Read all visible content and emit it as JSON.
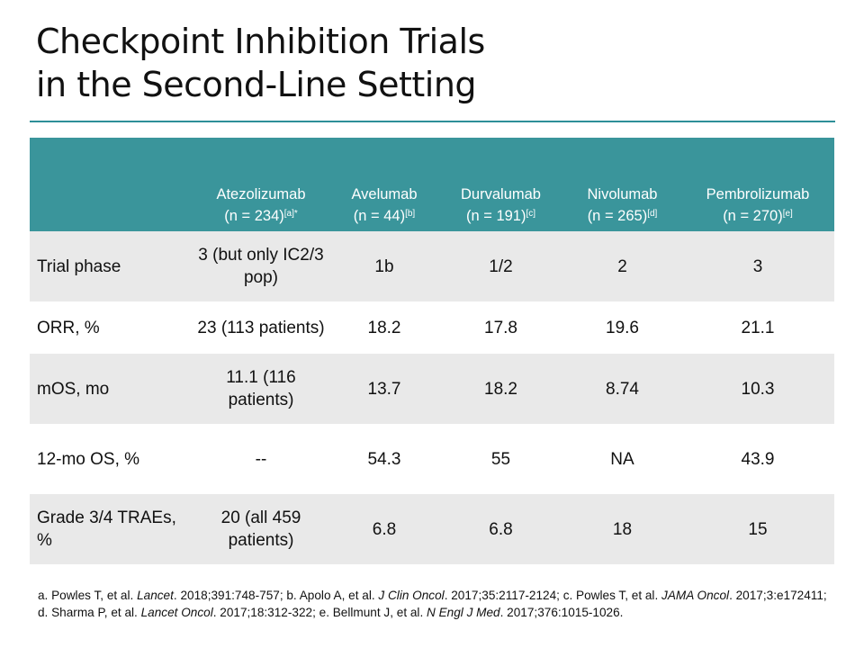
{
  "title": {
    "line1": "Checkpoint Inhibition Trials",
    "line2": "in the Second-Line Setting"
  },
  "table": {
    "headers": [
      {
        "drug": "Atezolizumab",
        "n": "(n = 234)",
        "sup": "[a]*"
      },
      {
        "drug": "Avelumab",
        "n": "(n = 44)",
        "sup": "[b]"
      },
      {
        "drug": "Durvalumab",
        "n": "(n = 191)",
        "sup": "[c]"
      },
      {
        "drug": "Nivolumab",
        "n": "(n = 265)",
        "sup": "[d]"
      },
      {
        "drug": "Pembrolizumab",
        "n": "(n = 270)",
        "sup": "[e]"
      }
    ],
    "rows": [
      {
        "label": "Trial phase",
        "cells": [
          "3 (but only IC2/3 pop)",
          "1b",
          "1/2",
          "2",
          "3"
        ]
      },
      {
        "label": "ORR, %",
        "cells": [
          "23 (113 patients)",
          "18.2",
          "17.8",
          "19.6",
          "21.1"
        ]
      },
      {
        "label": "mOS, mo",
        "cells": [
          "11.1 (116 patients)",
          "13.7",
          "18.2",
          "8.74",
          "10.3"
        ]
      },
      {
        "label": "12-mo OS, %",
        "cells": [
          "--",
          "54.3",
          "55",
          "NA",
          "43.9"
        ]
      },
      {
        "label": "Grade 3/4 TRAEs, %",
        "cells": [
          "20 (all 459 patients)",
          "6.8",
          "6.8",
          "18",
          "15"
        ]
      }
    ]
  },
  "references": {
    "a_pre": "a. Powles T, et al. ",
    "a_journal": "Lancet",
    "a_post": ". 2018;391:748-757; b. Apolo A, et al. ",
    "b_journal": "J Clin Oncol",
    "b_post": ". 2017;35:2117-2124; c. Powles T, et al. ",
    "c_journal": "JAMA Oncol",
    "c_post": ". 2017;3:e172411; d. Sharma P, et al. ",
    "d_journal": "Lancet Oncol",
    "d_post": ". 2017;18:312-322; e. Bellmunt J, et al. ",
    "e_journal": "N Engl J Med",
    "e_post": ". 2017;376:1015-1026."
  },
  "colors": {
    "accent": "#3a959b",
    "rule": "#2e8f98",
    "row_shade": "#e9e9e9"
  }
}
